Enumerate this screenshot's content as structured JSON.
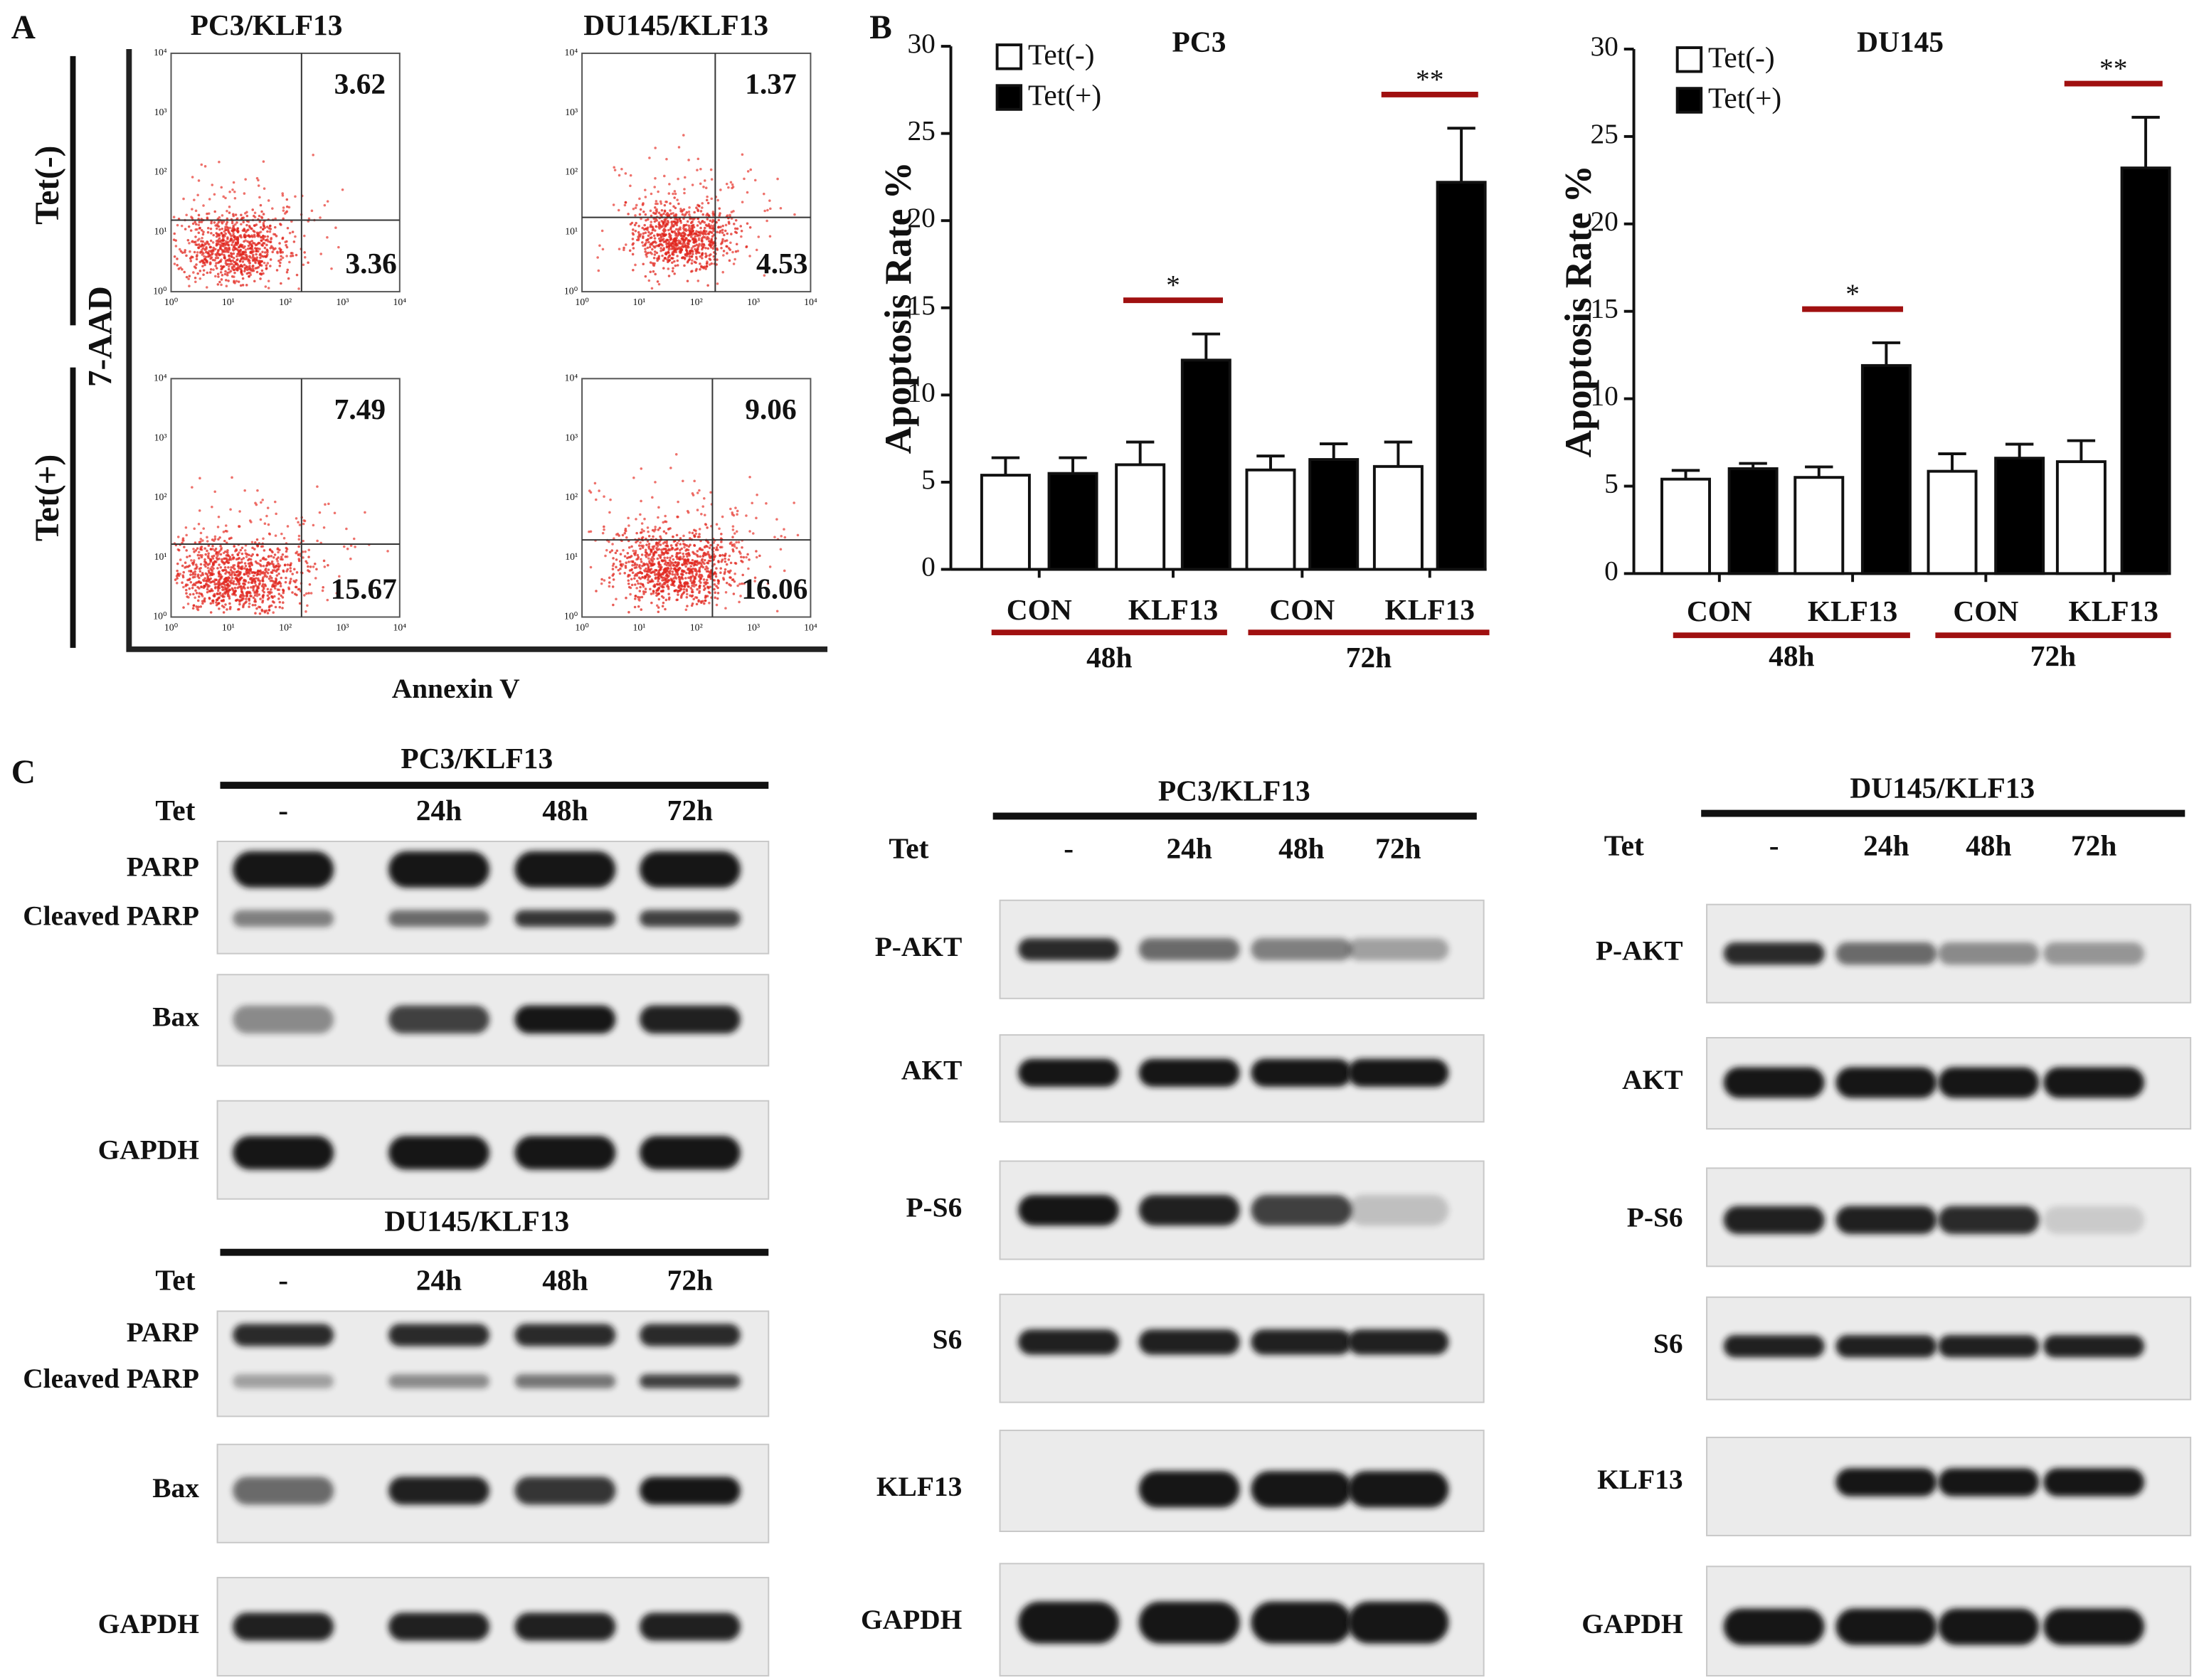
{
  "panel_labels": [
    "A",
    "B",
    "C"
  ],
  "flow_cytometry": {
    "x_label": "Annexin V",
    "y_label": "7-AAD",
    "axis_tick_labels": [
      "10⁰",
      "10¹",
      "10²",
      "10³",
      "10⁴"
    ],
    "columns": [
      "PC3/KLF13",
      "DU145/KLF13"
    ],
    "rows": [
      "Tet(-)",
      "Tet(+)"
    ],
    "plots": [
      {
        "upper_right": 3.62,
        "lower_right": 3.36
      },
      {
        "upper_right": 1.37,
        "lower_right": 4.53
      },
      {
        "upper_right": 7.49,
        "lower_right": 15.67
      },
      {
        "upper_right": 9.06,
        "lower_right": 16.06
      }
    ]
  },
  "chart_data": [
    {
      "type": "bar",
      "title": "PC3",
      "y_label": "Apoptosis Rate %",
      "categories": [
        "CON",
        "KLF13",
        "CON",
        "KLF13"
      ],
      "groups": [
        "48h",
        "72h"
      ],
      "significance": [
        null,
        "*",
        null,
        "**"
      ],
      "ylim": [
        0,
        30
      ],
      "yticks": [
        0,
        5,
        10,
        15,
        20,
        25,
        30
      ],
      "series": [
        {
          "name": "Tet(-)",
          "color": "#ffffff",
          "values": [
            5.4,
            6.0,
            5.7,
            5.9
          ],
          "errors": [
            1.0,
            1.3,
            0.8,
            1.4
          ]
        },
        {
          "name": "Tet(+)",
          "color": "#000000",
          "values": [
            5.5,
            12.0,
            6.3,
            22.2
          ],
          "errors": [
            0.9,
            1.5,
            0.9,
            3.1
          ]
        }
      ]
    },
    {
      "type": "bar",
      "title": "DU145",
      "y_label": "Apoptosis Rate %",
      "categories": [
        "CON",
        "KLF13",
        "CON",
        "KLF13"
      ],
      "groups": [
        "48h",
        "72h"
      ],
      "significance": [
        null,
        "*",
        null,
        "**"
      ],
      "ylim": [
        0,
        30
      ],
      "yticks": [
        0,
        5,
        10,
        15,
        20,
        25,
        30
      ],
      "series": [
        {
          "name": "Tet(-)",
          "color": "#ffffff",
          "values": [
            5.4,
            5.5,
            5.85,
            6.4
          ],
          "errors": [
            0.5,
            0.6,
            1.0,
            1.2
          ]
        },
        {
          "name": "Tet(+)",
          "color": "#000000",
          "values": [
            6.0,
            11.9,
            6.6,
            23.2
          ],
          "errors": [
            0.3,
            1.3,
            0.8,
            2.9
          ]
        }
      ]
    }
  ],
  "western_blots": [
    {
      "title": "PC3/KLF13",
      "condition_label": "Tet",
      "lanes": [
        "-",
        "24h",
        "48h",
        "72h"
      ],
      "bands": [
        "PARP",
        "Cleaved PARP",
        "Bax",
        "GAPDH"
      ]
    },
    {
      "title": "DU145/KLF13",
      "condition_label": "Tet",
      "lanes": [
        "-",
        "24h",
        "48h",
        "72h"
      ],
      "bands": [
        "PARP",
        "Cleaved PARP",
        "Bax",
        "GAPDH"
      ]
    },
    {
      "title": "PC3/KLF13",
      "condition_label": "Tet",
      "lanes": [
        "-",
        "24h",
        "48h",
        "72h"
      ],
      "bands": [
        "P-AKT",
        "AKT",
        "P-S6",
        "S6",
        "KLF13",
        "GAPDH"
      ]
    },
    {
      "title": "DU145/KLF13",
      "condition_label": "Tet",
      "lanes": [
        "-",
        "24h",
        "48h",
        "72h"
      ],
      "bands": [
        "P-AKT",
        "AKT",
        "P-S6",
        "S6",
        "KLF13",
        "GAPDH"
      ]
    }
  ]
}
